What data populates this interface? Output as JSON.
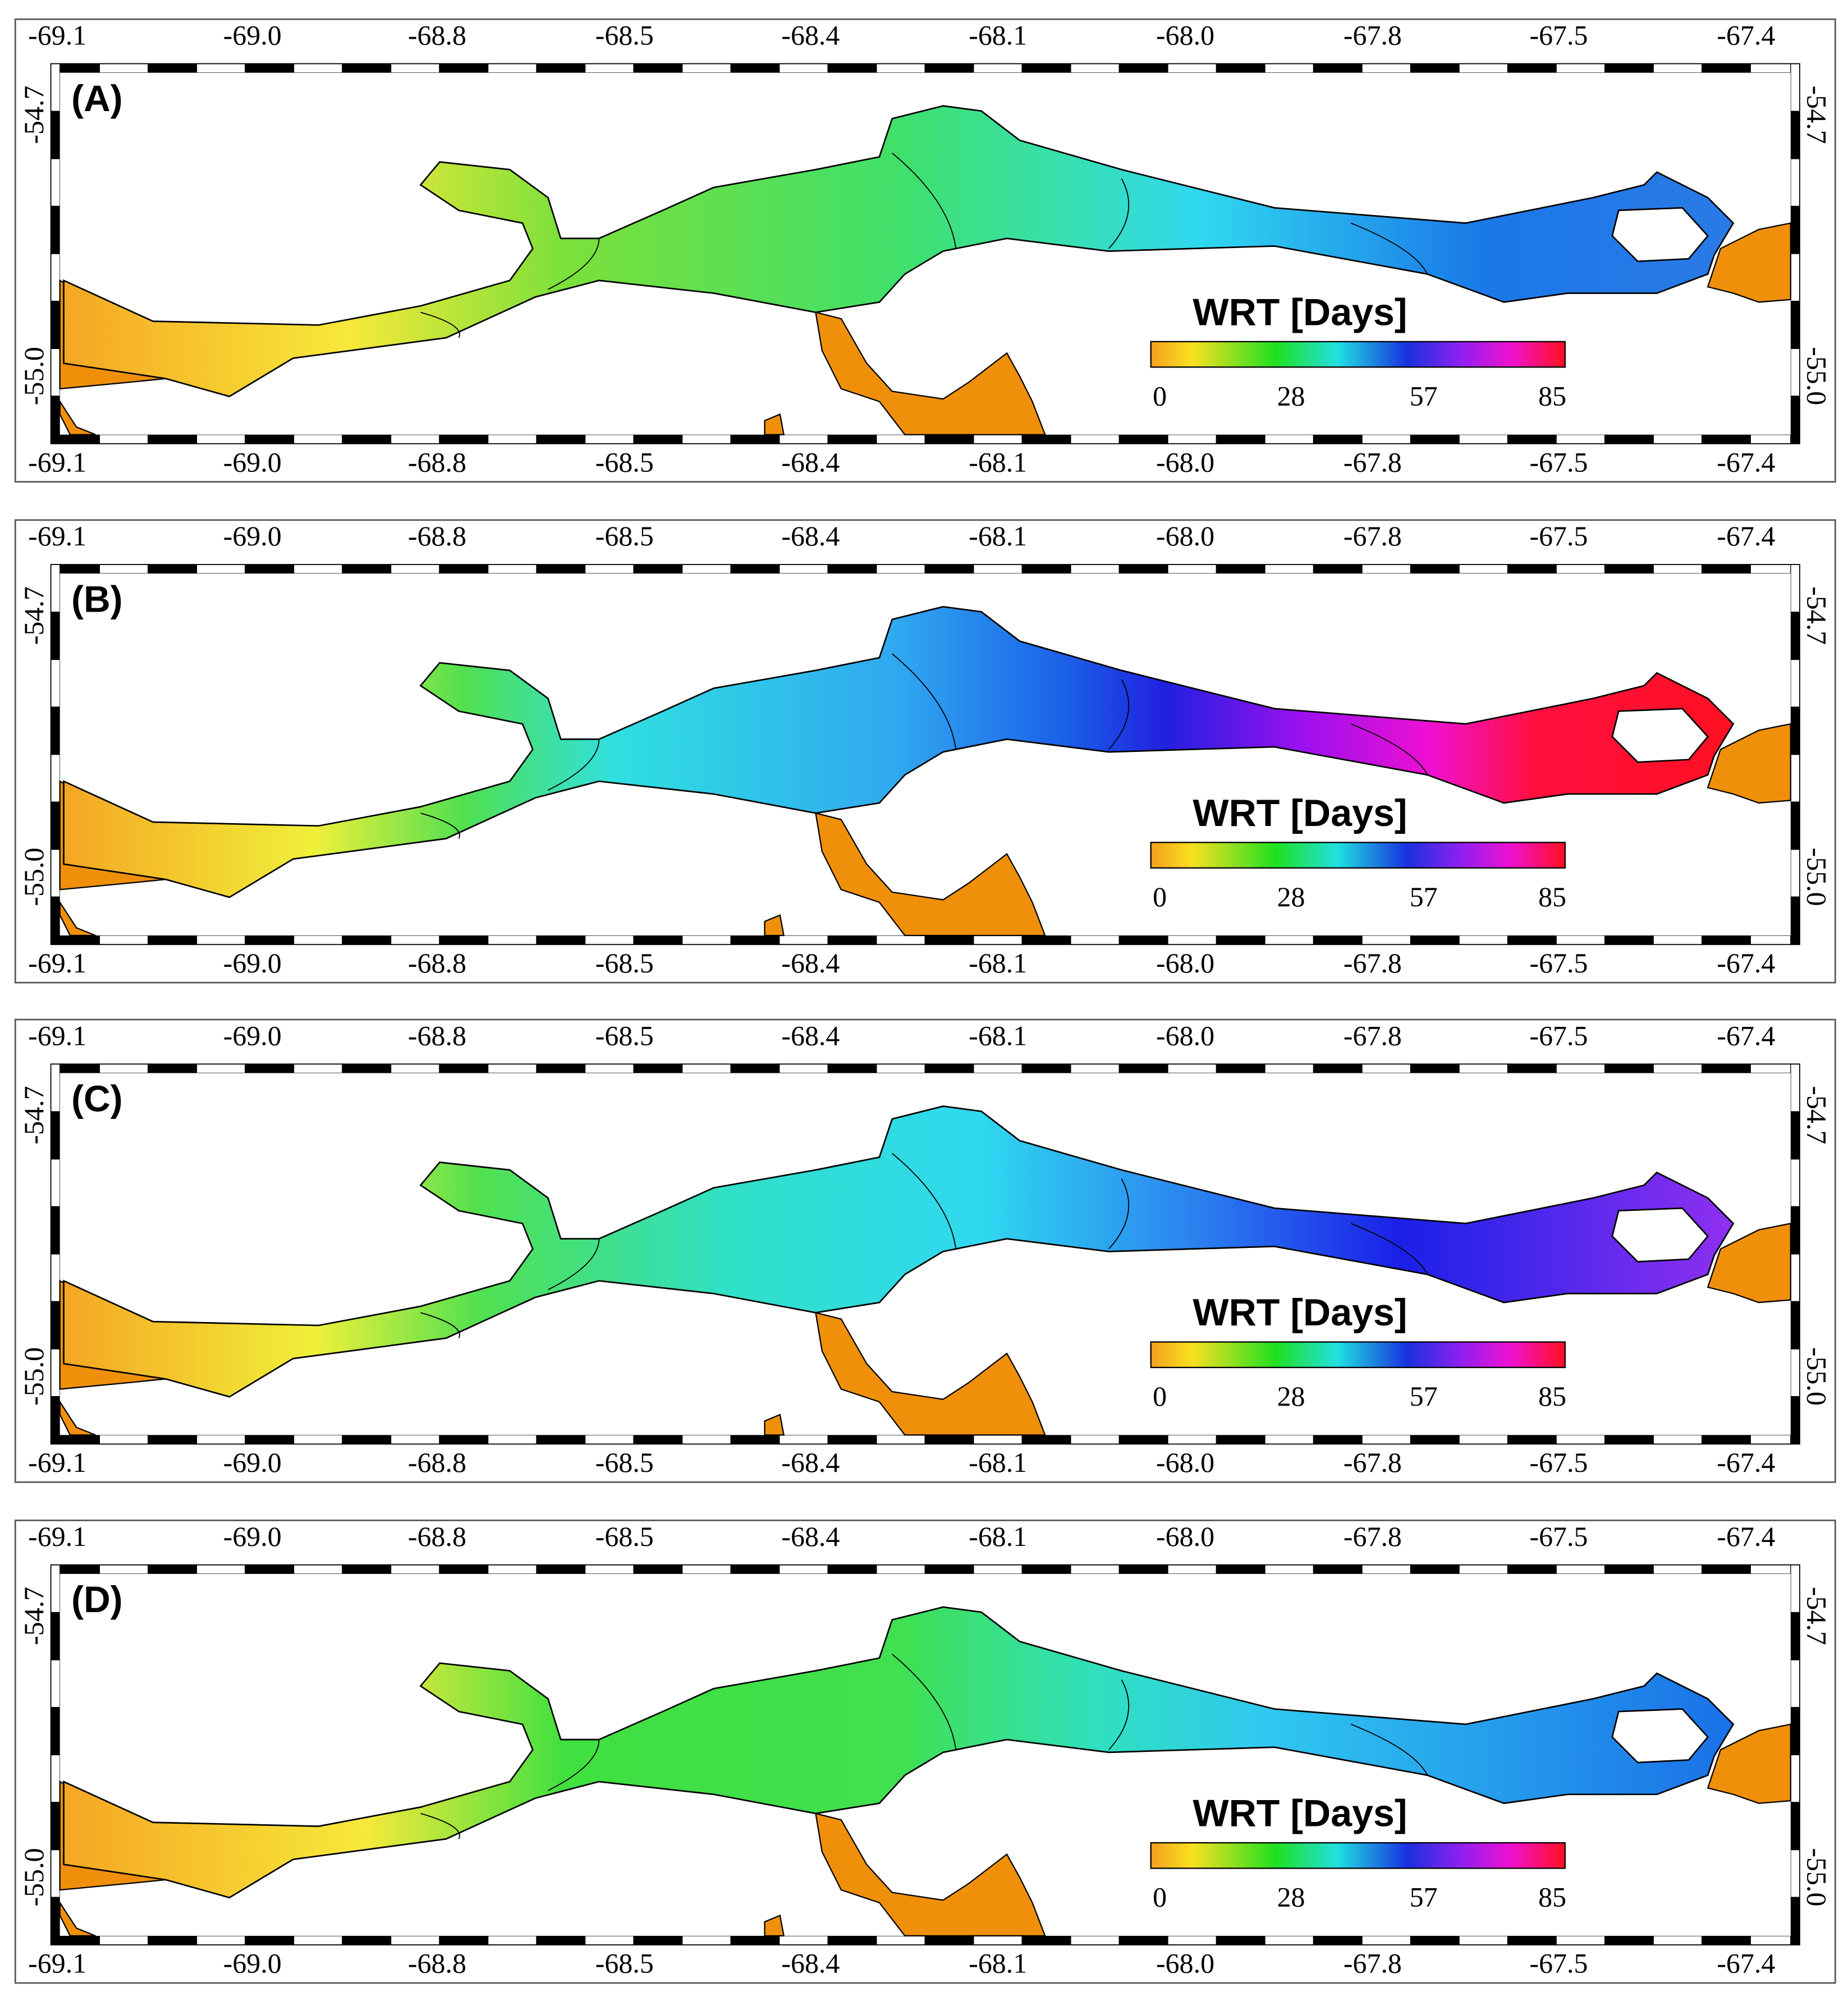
{
  "panels": [
    {
      "label": "(A)"
    },
    {
      "label": "(B)"
    },
    {
      "label": "(C)"
    },
    {
      "label": "(D)"
    }
  ],
  "x_tick_labels": [
    "-69.1",
    "-69.0",
    "-68.8",
    "-68.5",
    "-68.4",
    "-68.1",
    "-68.0",
    "-67.8",
    "-67.5",
    "-67.4"
  ],
  "y_tick_labels": [
    "-54.7",
    "-55.0"
  ],
  "legend": {
    "title": "WRT [Days]",
    "ticks": [
      "0",
      "28",
      "57",
      "85"
    ]
  }
}
